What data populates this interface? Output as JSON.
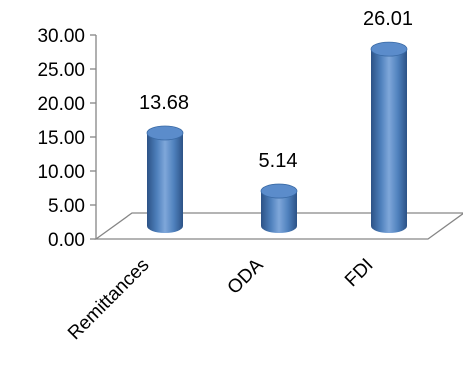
{
  "chart_data": {
    "type": "bar",
    "style": "3d-cylinder",
    "categories": [
      "Remittances",
      "ODA",
      "FDI"
    ],
    "values": [
      13.68,
      5.14,
      26.01
    ],
    "data_labels": [
      "13.68",
      "5.14",
      "26.01"
    ],
    "title": "",
    "xlabel": "",
    "ylabel": "",
    "ylim": [
      0,
      30
    ],
    "y_ticks": [
      "0.00",
      "5.00",
      "10.00",
      "15.00",
      "20.00",
      "25.00",
      "30.00"
    ],
    "grid": false,
    "legend": "none",
    "colors": {
      "bar_main": "#4F81BD",
      "bar_light": "#7FA7DA",
      "bar_dark": "#2C5286"
    }
  }
}
